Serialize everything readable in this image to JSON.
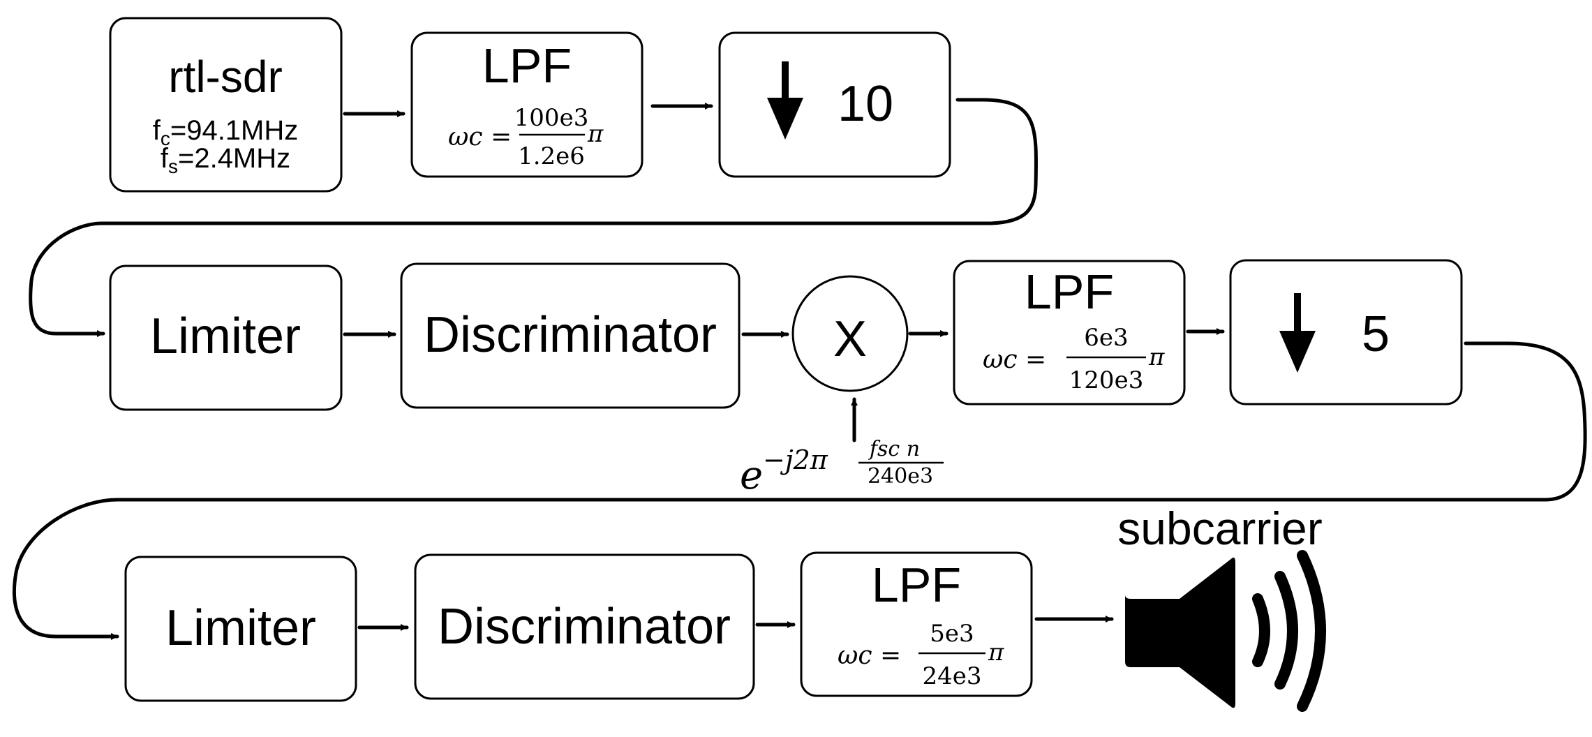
{
  "row1": {
    "source": {
      "title": "rtl-sdr",
      "fc_label": "fc=94.1MHz",
      "fc_symbol": "f",
      "fc_sub": "c",
      "fc_value": "=94.1MHz",
      "fs_symbol": "f",
      "fs_sub": "s",
      "fs_value": "=2.4MHz"
    },
    "lpf": {
      "title": "LPF",
      "omega": "ωc =",
      "num": "100e3",
      "den": "1.2e6",
      "pi": "π"
    },
    "decimator": {
      "factor": "10"
    }
  },
  "row2": {
    "limiter": {
      "title": "Limiter"
    },
    "discriminator": {
      "title": "Discriminator"
    },
    "mixer": {
      "symbol": "X",
      "input_base": "e",
      "input_exp": "−j2π",
      "input_num": "fsc n",
      "input_den": "240e3"
    },
    "lpf": {
      "title": "LPF",
      "omega": "ωc =",
      "num": "6e3",
      "den": "120e3",
      "pi": "π"
    },
    "decimator": {
      "factor": "5"
    }
  },
  "row3": {
    "limiter": {
      "title": "Limiter"
    },
    "discriminator": {
      "title": "Discriminator"
    },
    "lpf": {
      "title": "LPF",
      "omega": "ωc =",
      "num": "5e3",
      "den": "24e3",
      "pi": "π"
    },
    "output": {
      "label": "subcarrier",
      "icon": "speaker-icon"
    }
  }
}
